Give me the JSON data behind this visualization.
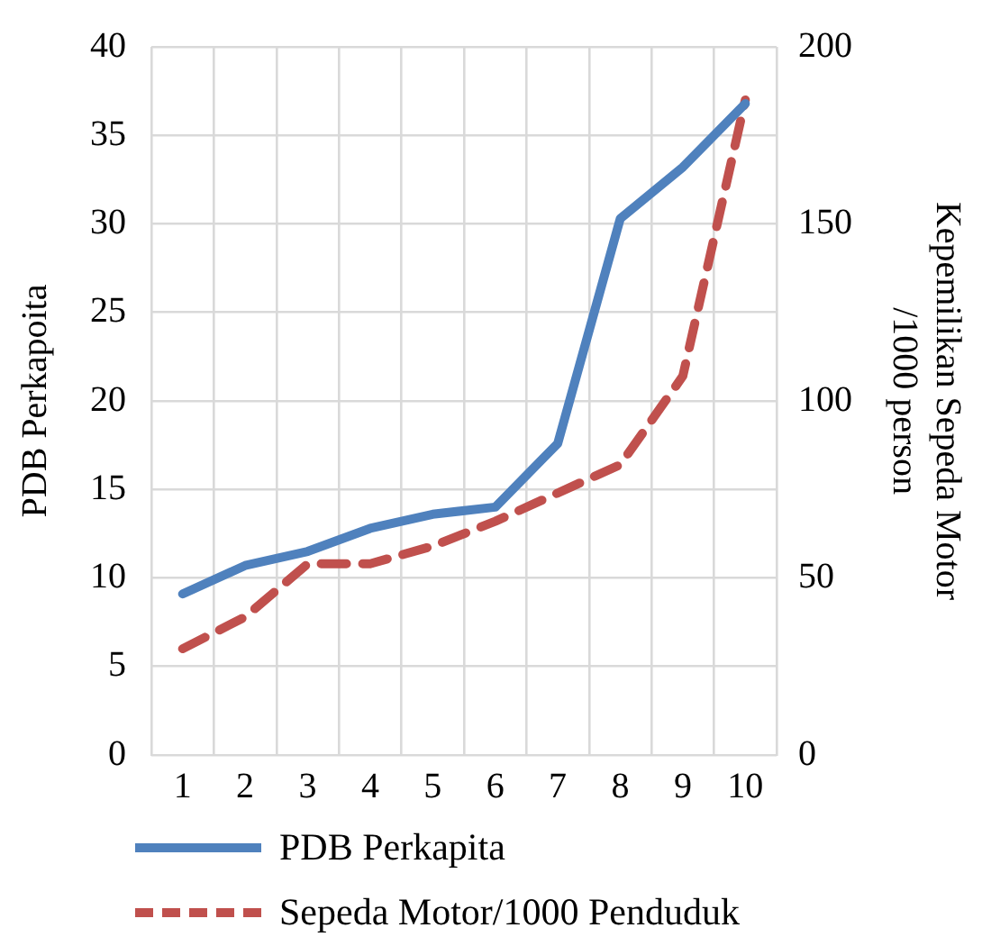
{
  "chart_data": {
    "type": "line",
    "categories": [
      "1",
      "2",
      "3",
      "4",
      "5",
      "6",
      "7",
      "8",
      "9",
      "10"
    ],
    "ylabel": "PDB Perkapoita",
    "y2label": "Kepemilikan Sepeda Motor /1000 person",
    "ylim": [
      0,
      40
    ],
    "yticks": [
      0,
      5,
      10,
      15,
      20,
      25,
      30,
      35,
      40
    ],
    "y2lim": [
      0,
      200
    ],
    "y2ticks": [
      0,
      50,
      100,
      150,
      200
    ],
    "grid": true,
    "legend": "bottom",
    "marker": "none",
    "series": [
      {
        "name": "PDB Perkapita",
        "color": "#4f81bd",
        "line_style": "solid",
        "values": [
          9.1,
          10.7,
          11.5,
          12.8,
          13.6,
          14.0,
          17.6,
          30.3,
          33.2,
          36.8
        ]
      },
      {
        "name": "Sepeda Motor/1000 Penduduk",
        "color": "#c0504d",
        "line_style": "dashed",
        "axis": "y2",
        "values": [
          30,
          39,
          54,
          54,
          59,
          66,
          74,
          82,
          107,
          185
        ]
      }
    ]
  }
}
